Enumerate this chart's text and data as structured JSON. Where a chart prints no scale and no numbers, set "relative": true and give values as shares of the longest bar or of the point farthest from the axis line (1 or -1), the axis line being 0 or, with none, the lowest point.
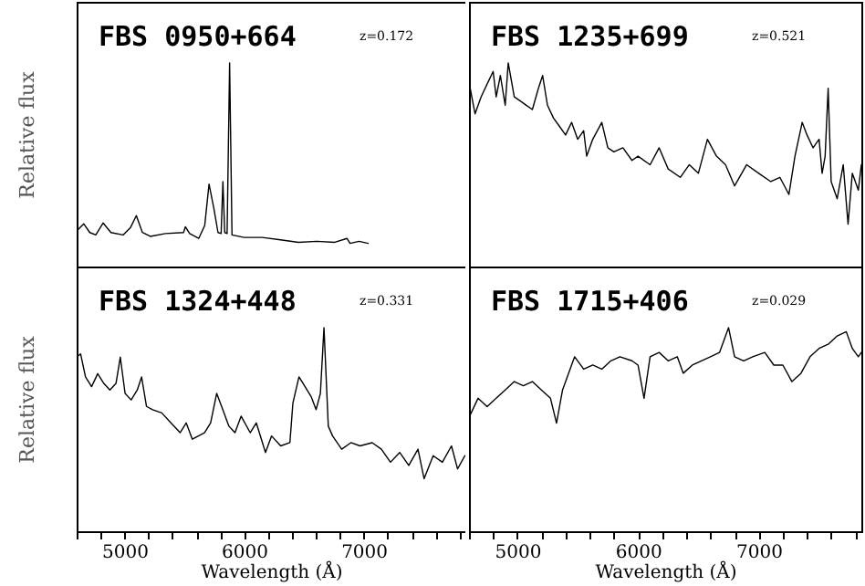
{
  "chart_data": [
    {
      "type": "line",
      "ylabel": "Relative flux",
      "annotations": [
        "FBS 0950+664",
        "z=0.172"
      ],
      "relative": true,
      "tick_labels": false,
      "xlim": [
        4600,
        7850
      ],
      "xticks": [
        {
          "value": 4600,
          "label": null
        },
        {
          "value": 4800,
          "label": null
        },
        5000,
        {
          "value": 5200,
          "label": null
        },
        {
          "value": 5400,
          "label": null
        },
        {
          "value": 5600,
          "label": null
        },
        {
          "value": 5800,
          "label": null
        },
        6000,
        {
          "value": 6200,
          "label": null
        },
        {
          "value": 6400,
          "label": null
        },
        {
          "value": 6600,
          "label": null
        },
        {
          "value": 6800,
          "label": null
        },
        7000,
        {
          "value": 7200,
          "label": null
        },
        {
          "value": 7400,
          "label": null
        },
        {
          "value": 7600,
          "label": null
        },
        {
          "value": 7800,
          "label": null
        }
      ],
      "x": [
        4608,
        4659,
        4710,
        4760,
        4821,
        4887,
        4988,
        5049,
        5099,
        5150,
        5216,
        5342,
        5494,
        5509,
        5545,
        5621,
        5671,
        5707,
        5747,
        5782,
        5808,
        5823,
        5838,
        5858,
        5879,
        5899,
        6000,
        6152,
        6304,
        6455,
        6607,
        6759,
        6860,
        6886,
        6961,
        7037
      ],
      "series": [
        {
          "color": "#000000",
          "values": [
            0.179,
            0.21,
            0.167,
            0.155,
            0.214,
            0.167,
            0.155,
            0.19,
            0.25,
            0.167,
            0.148,
            0.162,
            0.167,
            0.195,
            0.162,
            0.138,
            0.202,
            0.405,
            0.286,
            0.167,
            0.162,
            0.417,
            0.167,
            0.162,
            1,
            0.155,
            0.143,
            0.143,
            0.131,
            0.119,
            0.124,
            0.119,
            0.138,
            0.114,
            0.124,
            0.114
          ]
        }
      ]
    },
    {
      "type": "line",
      "annotations": [
        "FBS 1235+699",
        "z=0.521"
      ],
      "relative": true,
      "tick_labels": false,
      "xlim": [
        4600,
        7850
      ],
      "xticks": [
        {
          "value": 4600,
          "label": null
        },
        {
          "value": 4800,
          "label": null
        },
        5000,
        {
          "value": 5200,
          "label": null
        },
        {
          "value": 5400,
          "label": null
        },
        {
          "value": 5600,
          "label": null
        },
        {
          "value": 5800,
          "label": null
        },
        6000,
        {
          "value": 6200,
          "label": null
        },
        {
          "value": 6400,
          "label": null
        },
        {
          "value": 6600,
          "label": null
        },
        {
          "value": 6800,
          "label": null
        },
        7000,
        {
          "value": 7200,
          "label": null
        },
        {
          "value": 7400,
          "label": null
        },
        {
          "value": 7600,
          "label": null
        },
        {
          "value": 7800,
          "label": null
        }
      ],
      "x": [
        4610,
        4650,
        4700,
        4750,
        4800,
        4825,
        4860,
        4900,
        4925,
        4975,
        5025,
        5075,
        5125,
        5175,
        5210,
        5250,
        5300,
        5350,
        5400,
        5450,
        5500,
        5550,
        5575,
        5625,
        5700,
        5750,
        5800,
        5875,
        5950,
        6000,
        6100,
        6175,
        6250,
        6350,
        6425,
        6500,
        6575,
        6650,
        6725,
        6800,
        6900,
        7000,
        7100,
        7175,
        7250,
        7300,
        7360,
        7400,
        7450,
        7500,
        7525,
        7550,
        7575,
        7600,
        7650,
        7700,
        7740,
        7775,
        7825,
        7850
      ],
      "series": [
        {
          "color": "#000000",
          "values": [
            0.875,
            0.75,
            0.833,
            0.896,
            0.958,
            0.833,
            0.938,
            0.792,
            1,
            0.833,
            0.813,
            0.792,
            0.771,
            0.875,
            0.938,
            0.792,
            0.729,
            0.688,
            0.646,
            0.708,
            0.625,
            0.667,
            0.542,
            0.625,
            0.708,
            0.583,
            0.563,
            0.583,
            0.521,
            0.542,
            0.5,
            0.583,
            0.479,
            0.438,
            0.5,
            0.458,
            0.625,
            0.542,
            0.5,
            0.396,
            0.5,
            0.458,
            0.417,
            0.438,
            0.354,
            0.542,
            0.708,
            0.646,
            0.583,
            0.625,
            0.458,
            0.542,
            0.875,
            0.417,
            0.333,
            0.5,
            0.208,
            0.458,
            0.375,
            0.5
          ]
        }
      ]
    },
    {
      "type": "line",
      "xlabel": "Wavelength (Å)",
      "ylabel": "Relative flux",
      "annotations": [
        "FBS 1324+448",
        "z=0.331"
      ],
      "relative": true,
      "tick_labels": "x",
      "xlim": [
        4600,
        7850
      ],
      "xticks": [
        {
          "value": 4600,
          "label": null
        },
        {
          "value": 4800,
          "label": null
        },
        5000,
        {
          "value": 5200,
          "label": null
        },
        {
          "value": 5400,
          "label": null
        },
        {
          "value": 5600,
          "label": null
        },
        {
          "value": 5800,
          "label": null
        },
        6000,
        {
          "value": 6200,
          "label": null
        },
        {
          "value": 6400,
          "label": null
        },
        {
          "value": 6600,
          "label": null
        },
        {
          "value": 6800,
          "label": null
        },
        7000,
        {
          "value": 7200,
          "label": null
        },
        {
          "value": 7400,
          "label": null
        },
        {
          "value": 7600,
          "label": null
        },
        {
          "value": 7800,
          "label": null
        }
      ],
      "x": [
        4600,
        4633,
        4674,
        4725,
        4776,
        4827,
        4878,
        4929,
        4965,
        5005,
        5056,
        5107,
        5143,
        5184,
        5235,
        5312,
        5388,
        5465,
        5516,
        5567,
        5618,
        5669,
        5720,
        5771,
        5822,
        5873,
        5924,
        5975,
        6051,
        6102,
        6179,
        6230,
        6306,
        6383,
        6408,
        6459,
        6510,
        6561,
        6602,
        6638,
        6668,
        6704,
        6740,
        6816,
        6893,
        6969,
        7071,
        7148,
        7224,
        7301,
        7377,
        7454,
        7505,
        7581,
        7658,
        7734,
        7785,
        7846
      ],
      "series": [
        {
          "color": "#000000",
          "values": [
            0.855,
            0.871,
            0.758,
            0.71,
            0.774,
            0.726,
            0.694,
            0.726,
            0.855,
            0.677,
            0.645,
            0.694,
            0.758,
            0.613,
            0.597,
            0.581,
            0.532,
            0.484,
            0.532,
            0.452,
            0.468,
            0.484,
            0.532,
            0.677,
            0.597,
            0.516,
            0.484,
            0.565,
            0.484,
            0.532,
            0.387,
            0.468,
            0.419,
            0.435,
            0.629,
            0.758,
            0.71,
            0.661,
            0.597,
            0.677,
            1,
            0.516,
            0.468,
            0.403,
            0.435,
            0.419,
            0.435,
            0.403,
            0.339,
            0.387,
            0.323,
            0.403,
            0.258,
            0.371,
            0.339,
            0.419,
            0.306,
            0.371
          ]
        }
      ]
    },
    {
      "type": "line",
      "xlabel": "Wavelength (Å)",
      "annotations": [
        "FBS 1715+406",
        "z=0.029"
      ],
      "relative": true,
      "tick_labels": "x",
      "xlim": [
        4600,
        7850
      ],
      "xticks": [
        {
          "value": 4600,
          "label": null
        },
        {
          "value": 4800,
          "label": null
        },
        5000,
        {
          "value": 5200,
          "label": null
        },
        {
          "value": 5400,
          "label": null
        },
        {
          "value": 5600,
          "label": null
        },
        {
          "value": 5800,
          "label": null
        },
        6000,
        {
          "value": 6200,
          "label": null
        },
        {
          "value": 6400,
          "label": null
        },
        {
          "value": 6600,
          "label": null
        },
        {
          "value": 6800,
          "label": null
        },
        7000,
        {
          "value": 7200,
          "label": null
        },
        {
          "value": 7400,
          "label": null
        },
        {
          "value": 7600,
          "label": null
        },
        {
          "value": 7800,
          "label": null
        }
      ],
      "x": [
        4610,
        4675,
        4750,
        4825,
        4900,
        4975,
        5050,
        5125,
        5200,
        5275,
        5325,
        5375,
        5425,
        5475,
        5550,
        5625,
        5700,
        5775,
        5850,
        5950,
        6000,
        6050,
        6100,
        6175,
        6250,
        6325,
        6375,
        6450,
        6525,
        6600,
        6675,
        6750,
        6800,
        6875,
        6950,
        7050,
        7125,
        7200,
        7275,
        7350,
        7425,
        7500,
        7575,
        7650,
        7725,
        7775,
        7825,
        7850
      ],
      "series": [
        {
          "color": "#000000",
          "values": [
            0.571,
            0.653,
            0.612,
            0.653,
            0.694,
            0.735,
            0.714,
            0.735,
            0.694,
            0.653,
            0.531,
            0.694,
            0.776,
            0.857,
            0.796,
            0.816,
            0.796,
            0.837,
            0.857,
            0.837,
            0.816,
            0.653,
            0.857,
            0.878,
            0.837,
            0.857,
            0.776,
            0.816,
            0.837,
            0.857,
            0.878,
            1,
            0.857,
            0.837,
            0.857,
            0.878,
            0.816,
            0.816,
            0.735,
            0.776,
            0.857,
            0.898,
            0.918,
            0.959,
            0.98,
            0.898,
            0.857,
            0.878
          ]
        }
      ]
    }
  ]
}
